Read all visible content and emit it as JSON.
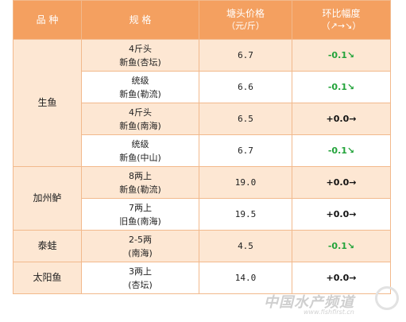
{
  "header": {
    "category": "品  种",
    "spec": "规  格",
    "price_line1": "塘头价格",
    "price_line2": "（元/斤）",
    "change_line1": "环比幅度",
    "change_line2": "（↗→↘）"
  },
  "rows": [
    {
      "spec1": "4斤头",
      "spec2": "新鱼(杏坛)",
      "price": "6.7",
      "change": "-0.1↘"
    },
    {
      "spec1": "统级",
      "spec2": "新鱼(勒流)",
      "price": "6.6",
      "change": "-0.1↘"
    },
    {
      "spec1": "4斤头",
      "spec2": "新鱼(南海)",
      "price": "6.5",
      "change": "+0.0→"
    },
    {
      "spec1": "统级",
      "spec2": "新鱼(中山)",
      "price": "6.7",
      "change": "-0.1↘"
    },
    {
      "spec1": "8两上",
      "spec2": "新鱼(勒流)",
      "price": "19.0",
      "change": "+0.0→"
    },
    {
      "spec1": "7两上",
      "spec2": "旧鱼(南海)",
      "price": "19.5",
      "change": "+0.0→"
    },
    {
      "spec1": "2-5两",
      "spec2": "(南海)",
      "price": "4.5",
      "change": "-0.1↘"
    },
    {
      "spec1": "3两上",
      "spec2": "(杏坛)",
      "price": "14.0",
      "change": "+0.0→"
    }
  ],
  "categories": [
    "生鱼",
    "加州鲈",
    "泰蛙",
    "太阳鱼"
  ],
  "watermark": {
    "main": "中国水产频道",
    "url": "www.fishfirst.cn"
  },
  "colors": {
    "header_bg": "#f4a060",
    "row_tint": "#fde7d3",
    "border": "#f2b98c",
    "down": "#22a33a",
    "flat": "#111111"
  }
}
